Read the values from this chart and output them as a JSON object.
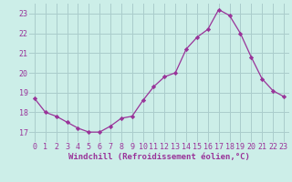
{
  "x": [
    0,
    1,
    2,
    3,
    4,
    5,
    6,
    7,
    8,
    9,
    10,
    11,
    12,
    13,
    14,
    15,
    16,
    17,
    18,
    19,
    20,
    21,
    22,
    23
  ],
  "y": [
    18.7,
    18.0,
    17.8,
    17.5,
    17.2,
    17.0,
    17.0,
    17.3,
    17.7,
    17.8,
    18.6,
    19.3,
    19.8,
    20.0,
    21.2,
    21.8,
    22.2,
    23.2,
    22.9,
    22.0,
    20.8,
    19.7,
    19.1,
    18.8
  ],
  "line_color": "#993399",
  "marker": "D",
  "marker_size": 2.2,
  "xlabel": "Windchill (Refroidissement éolien,°C)",
  "xlabel_fontsize": 6.5,
  "ylim": [
    16.5,
    23.5
  ],
  "xlim": [
    -0.5,
    23.5
  ],
  "yticks": [
    17,
    18,
    19,
    20,
    21,
    22,
    23
  ],
  "xticks": [
    0,
    1,
    2,
    3,
    4,
    5,
    6,
    7,
    8,
    9,
    10,
    11,
    12,
    13,
    14,
    15,
    16,
    17,
    18,
    19,
    20,
    21,
    22,
    23
  ],
  "background_color": "#cceee8",
  "grid_color": "#aacccc",
  "tick_fontsize": 6.0,
  "line_width": 0.9
}
